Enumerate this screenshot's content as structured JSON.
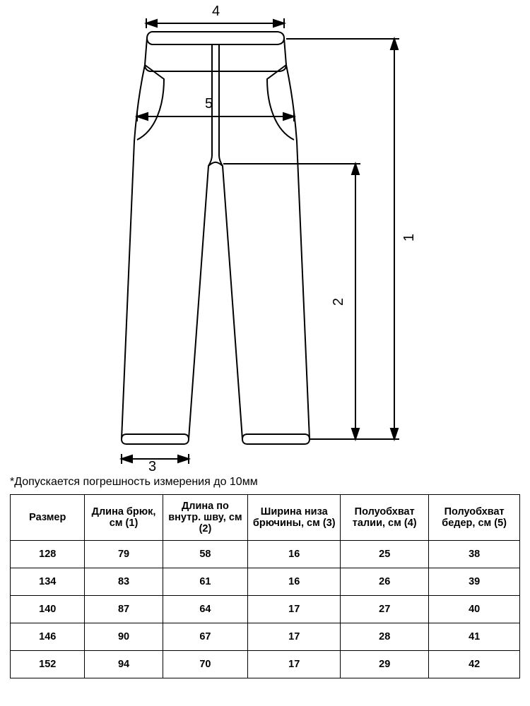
{
  "diagram": {
    "stroke": "#000000",
    "stroke_width": 2,
    "background": "#ffffff",
    "labels": {
      "d1": "1",
      "d2": "2",
      "d3": "3",
      "d4": "4",
      "d5": "5"
    }
  },
  "note": "*Допускается погрешность измерения до 10мм",
  "table": {
    "columns": [
      "Размер",
      "Длина брюк, см (1)",
      "Длина по внутр. шву, см (2)",
      "Ширина низа брючины, см (3)",
      "Полуобхват талии, см (4)",
      "Полуобхват бедер, см (5)"
    ],
    "rows": [
      [
        "128",
        "79",
        "58",
        "16",
        "25",
        "38"
      ],
      [
        "134",
        "83",
        "61",
        "16",
        "26",
        "39"
      ],
      [
        "140",
        "87",
        "64",
        "17",
        "27",
        "40"
      ],
      [
        "146",
        "90",
        "67",
        "17",
        "28",
        "41"
      ],
      [
        "152",
        "94",
        "70",
        "17",
        "29",
        "42"
      ]
    ],
    "col_widths": [
      "102",
      "108",
      "120",
      "128",
      "120",
      "124"
    ]
  }
}
